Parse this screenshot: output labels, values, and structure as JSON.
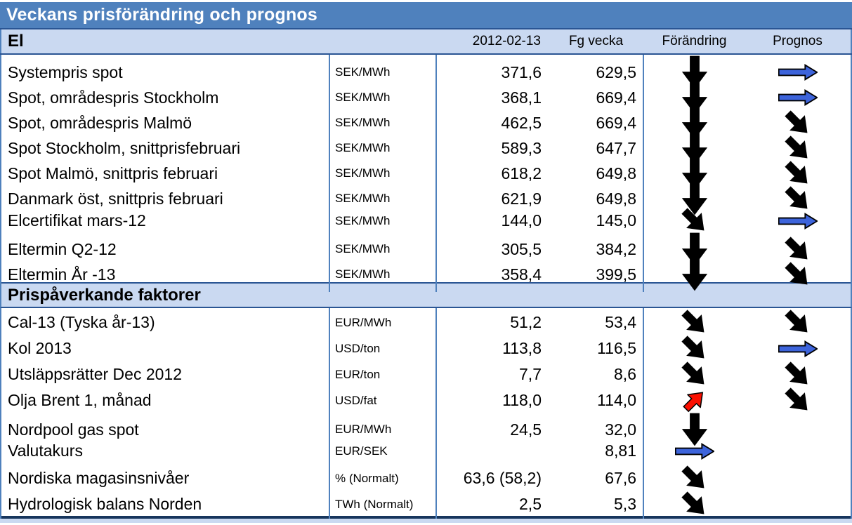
{
  "title": "Veckans prisförändring och prognos",
  "columns": {
    "date": "2012-02-13",
    "prev_week": "Fg vecka",
    "change": "Förändring",
    "forecast": "Prognos"
  },
  "arrow_colors": {
    "black": "#000000",
    "blue": "#3d64db",
    "red": "#fa0f00"
  },
  "sections": [
    {
      "name": "El",
      "rows": [
        {
          "label": "Systempris spot",
          "unit": "SEK/MWh",
          "value": "371,6",
          "prev": "629,5",
          "change": "down-black",
          "forecast": "right-blue"
        },
        {
          "label": "Spot, områdespris Stockholm",
          "unit": "SEK/MWh",
          "value": "368,1",
          "prev": "669,4",
          "change": "down-black",
          "forecast": "right-blue"
        },
        {
          "label": "Spot, områdespris Malmö",
          "unit": "SEK/MWh",
          "value": "462,5",
          "prev": "669,4",
          "change": "down-black",
          "forecast": "diag-black"
        },
        {
          "label": "Spot Stockholm, snittprisfebruari",
          "unit": "SEK/MWh",
          "value": "589,3",
          "prev": "647,7",
          "change": "down-black",
          "forecast": "diag-black"
        },
        {
          "label": "Spot Malmö, snittpris februari",
          "unit": "SEK/MWh",
          "value": "618,2",
          "prev": "649,8",
          "change": "down-black",
          "forecast": "diag-black"
        },
        {
          "label": "Danmark öst, snittpris februari",
          "unit": "SEK/MWh",
          "value": "621,9",
          "prev": "649,8",
          "change": "down-black",
          "forecast": "diag-black"
        },
        {
          "label": "Elcertifikat mars-12",
          "unit": "SEK/MWh",
          "value": "144,0",
          "prev": "145,0",
          "change": "diag-black",
          "forecast": "right-blue"
        },
        {
          "label": "Eltermin Q2-12",
          "unit": "SEK/MWh",
          "value": "305,5",
          "prev": "384,2",
          "change": "down-black",
          "forecast": "diag-black"
        },
        {
          "label": "Eltermin År -13",
          "unit": "SEK/MWh",
          "value": "358,4",
          "prev": "399,5",
          "change": "down-black",
          "forecast": "diag-black"
        }
      ]
    },
    {
      "name": "Prispåverkande faktorer",
      "rows": [
        {
          "label": "Cal-13 (Tyska år-13)",
          "unit": "EUR/MWh",
          "value": "51,2",
          "prev": "53,4",
          "change": "diag-black",
          "forecast": "diag-black"
        },
        {
          "label": "Kol 2013",
          "unit": "USD/ton",
          "value": "113,8",
          "prev": "116,5",
          "change": "diag-black",
          "forecast": "right-blue"
        },
        {
          "label": "Utsläppsrätter Dec 2012",
          "unit": "EUR/ton",
          "value": "7,7",
          "prev": "8,6",
          "change": "diag-black",
          "forecast": "diag-black"
        },
        {
          "label": "Olja Brent 1, månad",
          "unit": "USD/fat",
          "value": "118,0",
          "prev": "114,0",
          "change": "up-red",
          "forecast": "diag-black"
        },
        {
          "label": "Nordpool gas spot",
          "unit": "EUR/MWh",
          "value": "24,5",
          "prev": "32,0",
          "change": "down-black",
          "forecast": ""
        },
        {
          "label": "Valutakurs",
          "unit": "EUR/SEK",
          "value": "",
          "prev": "8,81",
          "change": "right-blue",
          "forecast": ""
        },
        {
          "label": "Nordiska magasinsnivåer",
          "unit": "% (Normalt)",
          "value": "63,6 (58,2)",
          "prev": "67,6",
          "change": "diag-black",
          "forecast": ""
        },
        {
          "label": "Hydrologisk balans Norden",
          "unit": "TWh (Normalt)",
          "value": "2,5",
          "prev": "5,3",
          "change": "diag-black",
          "forecast": ""
        }
      ]
    }
  ]
}
